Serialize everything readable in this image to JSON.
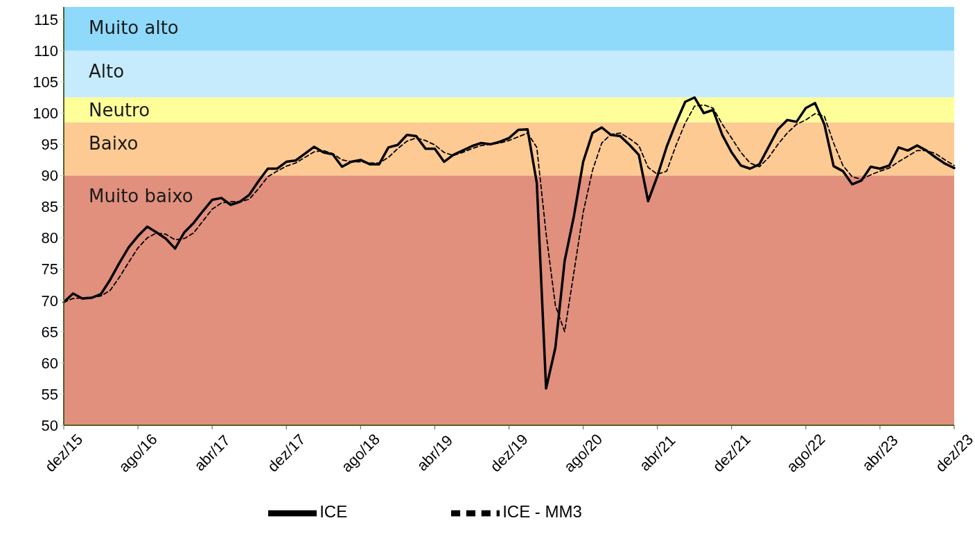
{
  "chart_data": {
    "type": "line",
    "categories": [
      "dez/15",
      null,
      null,
      null,
      null,
      null,
      null,
      null,
      "ago/16",
      null,
      null,
      null,
      null,
      null,
      null,
      null,
      "abr/17",
      null,
      null,
      null,
      null,
      null,
      null,
      null,
      "dez/17",
      null,
      null,
      null,
      null,
      null,
      null,
      null,
      "ago/18",
      null,
      null,
      null,
      null,
      null,
      null,
      null,
      "abr/19",
      null,
      null,
      null,
      null,
      null,
      null,
      null,
      "dez/19",
      null,
      null,
      null,
      null,
      null,
      null,
      null,
      "ago/20",
      null,
      null,
      null,
      null,
      null,
      null,
      null,
      "abr/21",
      null,
      null,
      null,
      null,
      null,
      null,
      null,
      "dez/21",
      null,
      null,
      null,
      null,
      null,
      null,
      null,
      "ago/22",
      null,
      null,
      null,
      null,
      null,
      null,
      null,
      "abr/23",
      null,
      null,
      null,
      null,
      null,
      null,
      null,
      "dez/23"
    ],
    "series": [
      {
        "name": "ICE",
        "color": "#000000",
        "line_style": "solid",
        "values": [
          69.7,
          71.1,
          70.3,
          70.4,
          71.0,
          73.3,
          76.0,
          78.5,
          80.3,
          81.8,
          80.9,
          79.9,
          78.3,
          80.9,
          82.4,
          84.3,
          86.1,
          86.4,
          85.3,
          85.8,
          86.9,
          89.1,
          91.1,
          91.1,
          92.2,
          92.4,
          93.5,
          94.6,
          93.7,
          93.4,
          91.4,
          92.2,
          92.5,
          91.8,
          91.8,
          94.5,
          94.9,
          96.5,
          96.3,
          94.3,
          94.3,
          92.2,
          93.3,
          94.0,
          94.7,
          95.2,
          95.0,
          95.4,
          96.0,
          97.3,
          97.4,
          88.8,
          55.9,
          62.4,
          76.3,
          83.5,
          92.2,
          96.8,
          97.7,
          96.5,
          96.3,
          94.9,
          93.3,
          85.9,
          89.9,
          94.6,
          98.4,
          101.8,
          102.5,
          100.0,
          100.5,
          96.5,
          93.7,
          91.6,
          91.1,
          91.8,
          94.6,
          97.4,
          98.9,
          98.6,
          100.8,
          101.6,
          98.2,
          91.5,
          90.7,
          88.6,
          89.2,
          91.4,
          91.1,
          91.6,
          94.5,
          94.0,
          94.8,
          94.0,
          92.9,
          91.9,
          91.2
        ]
      },
      {
        "name": "ICE - MM3",
        "color": "#000000",
        "line_style": "dashed",
        "values": [
          69.7,
          70.3,
          70.4,
          70.5,
          70.7,
          71.6,
          73.7,
          76.1,
          78.4,
          80.0,
          80.8,
          80.6,
          79.7,
          79.9,
          80.8,
          82.7,
          84.6,
          85.6,
          85.8,
          85.8,
          86.2,
          87.9,
          89.8,
          90.7,
          91.5,
          92.0,
          92.9,
          93.8,
          94.0,
          93.5,
          92.5,
          92.2,
          92.2,
          92.0,
          92.0,
          92.9,
          94.3,
          95.5,
          96.0,
          95.6,
          94.9,
          93.7,
          93.2,
          93.7,
          94.3,
          94.8,
          95.0,
          95.2,
          95.6,
          96.2,
          96.8,
          94.5,
          80.7,
          69.2,
          65.0,
          74.5,
          84.1,
          90.8,
          95.2,
          96.6,
          96.8,
          95.9,
          94.8,
          91.3,
          90.2,
          90.7,
          94.8,
          98.4,
          101.1,
          101.3,
          100.8,
          98.2,
          96.0,
          93.7,
          92.0,
          91.4,
          92.9,
          95.0,
          96.8,
          98.2,
          98.9,
          99.9,
          99.5,
          95.2,
          91.6,
          89.8,
          89.4,
          90.1,
          90.7,
          91.2,
          92.2,
          93.1,
          94.0,
          94.0,
          93.5,
          92.5,
          91.6
        ]
      }
    ],
    "ylim": [
      50,
      117
    ],
    "yticks": [
      50,
      55,
      60,
      65,
      70,
      75,
      80,
      85,
      90,
      95,
      100,
      105,
      110,
      115
    ],
    "bands": [
      {
        "axis": "y",
        "from": 110,
        "to": 117,
        "label": "Muito alto",
        "color": "#8fd9fb"
      },
      {
        "axis": "y",
        "from": 102.5,
        "to": 110,
        "label": "Alto",
        "color": "#c5ebfc"
      },
      {
        "axis": "y",
        "from": 98.5,
        "to": 102.5,
        "label": "Neutro",
        "color": "#ffff99"
      },
      {
        "axis": "y",
        "from": 90,
        "to": 98.5,
        "label": "Baixo",
        "color": "#fdca93"
      },
      {
        "axis": "y",
        "from": 50,
        "to": 90,
        "label": "Muito baixo",
        "color": "#e0907c"
      }
    ],
    "marker": "none",
    "legend": "bottom"
  }
}
